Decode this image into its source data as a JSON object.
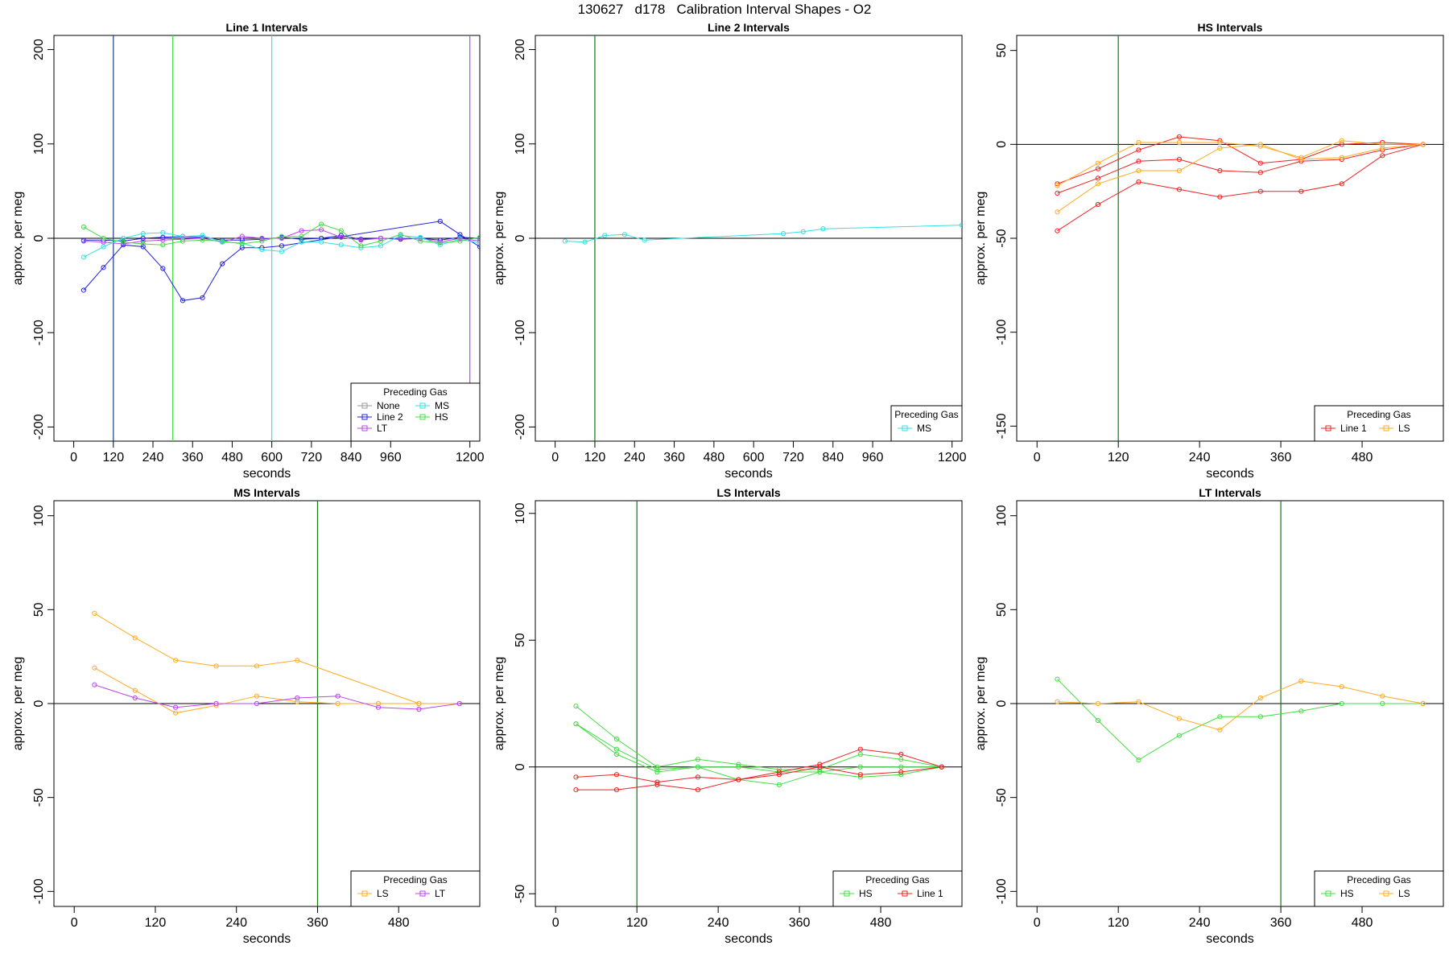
{
  "page": {
    "title": "130627   d178   Calibration Interval Shapes - O2"
  },
  "chart_data": [
    {
      "type": "line",
      "title": "Line 1 Intervals",
      "xlabel": "seconds",
      "ylabel": "approx. per meg",
      "xlim": [
        -60,
        1230
      ],
      "ylim": [
        -215,
        215
      ],
      "xticks": [
        0,
        120,
        240,
        360,
        480,
        600,
        720,
        840,
        960,
        1200
      ],
      "yticks": [
        -200,
        -100,
        0,
        100,
        200
      ],
      "hline": 0,
      "vlines": [
        {
          "x": 120,
          "color": "#1a3a8a"
        },
        {
          "x": 300,
          "color": "#44dd44"
        },
        {
          "x": 600,
          "color": "#33e0e0"
        },
        {
          "x": 1200,
          "color": "#bb44ee"
        }
      ],
      "legend": {
        "title": "Preceding Gas",
        "position": "bottom-right",
        "columns": 2,
        "entries": [
          {
            "name": "None",
            "color": "#999999"
          },
          {
            "name": "Line 2",
            "color": "#2222dd"
          },
          {
            "name": "LT",
            "color": "#bb44ee"
          },
          {
            "name": "MS",
            "color": "#33e0e0"
          },
          {
            "name": "HS",
            "color": "#44dd44"
          }
        ]
      },
      "series": [
        {
          "name": "Line 2",
          "color": "#2222dd",
          "x": [
            30,
            90,
            150,
            210,
            270,
            330,
            390,
            450,
            510,
            570,
            630,
            1110,
            1170,
            1230
          ],
          "y": [
            -55,
            -31,
            -7,
            -9,
            -32,
            -66,
            -63,
            -27,
            -10,
            -10,
            -8,
            18,
            4,
            -9
          ]
        },
        {
          "name": "Line 2",
          "color": "#2222dd",
          "x": [
            30,
            90,
            150,
            210,
            270,
            330,
            390,
            450,
            510,
            570,
            630,
            690,
            750,
            810,
            870,
            930,
            990,
            1050,
            1110,
            1170,
            1230
          ],
          "y": [
            -2,
            -2,
            -3,
            0,
            1,
            2,
            1,
            -2,
            -2,
            -1,
            1,
            -1,
            0,
            3,
            -1,
            0,
            -1,
            0,
            -2,
            1,
            0
          ]
        },
        {
          "name": "LT",
          "color": "#bb44ee",
          "x": [
            30,
            90,
            150,
            210,
            270,
            330,
            390,
            450,
            510,
            570,
            630,
            690,
            750,
            810,
            870,
            930,
            990,
            1050,
            1110,
            1170,
            1230
          ],
          "y": [
            -3,
            -4,
            -6,
            -3,
            -2,
            -1,
            0,
            -4,
            2,
            0,
            0,
            8,
            9,
            1,
            -2,
            0,
            0,
            0,
            -4,
            0,
            -3
          ]
        },
        {
          "name": "MS",
          "color": "#33e0e0",
          "x": [
            30,
            90,
            150,
            210,
            270,
            330,
            390,
            450,
            510,
            570,
            630,
            690,
            750,
            810,
            870,
            930,
            990,
            1050,
            1110,
            1170,
            1230
          ],
          "y": [
            -20,
            -9,
            0,
            5,
            6,
            2,
            3,
            -4,
            -5,
            -12,
            -14,
            -4,
            -4,
            -7,
            -10,
            -8,
            3,
            1,
            -7,
            -1,
            -5
          ]
        },
        {
          "name": "HS",
          "color": "#44dd44",
          "x": [
            30,
            90,
            150,
            210,
            270,
            330,
            390,
            450,
            510,
            570,
            630,
            690,
            750,
            810,
            870,
            930,
            990,
            1050,
            1110,
            1170,
            1230
          ],
          "y": [
            12,
            0,
            -4,
            -6,
            -7,
            -3,
            -2,
            -3,
            -6,
            -3,
            2,
            2,
            15,
            8,
            -8,
            -3,
            4,
            -3,
            -5,
            -3,
            1
          ]
        }
      ]
    },
    {
      "type": "line",
      "title": "Line 2 Intervals",
      "xlabel": "seconds",
      "ylabel": "approx. per meg",
      "xlim": [
        -60,
        1230
      ],
      "ylim": [
        -215,
        215
      ],
      "xticks": [
        0,
        120,
        240,
        360,
        480,
        600,
        720,
        840,
        960,
        1200
      ],
      "yticks": [
        -200,
        -100,
        0,
        100,
        200
      ],
      "hline": 0,
      "vlines": [
        {
          "x": 120,
          "color": "#117711"
        }
      ],
      "legend": {
        "title": "Preceding Gas",
        "position": "bottom-right",
        "columns": 1,
        "entries": [
          {
            "name": "MS",
            "color": "#33e0e0"
          }
        ]
      },
      "series": [
        {
          "name": "MS",
          "color": "#33e0e0",
          "x": [
            30,
            90,
            150,
            210,
            270,
            690,
            750,
            810,
            1230
          ],
          "y": [
            -3,
            -4,
            3,
            4,
            -2,
            5,
            7,
            10,
            14
          ]
        }
      ]
    },
    {
      "type": "line",
      "title": "HS Intervals",
      "xlabel": "seconds",
      "ylabel": "approx. per meg",
      "xlim": [
        -30,
        600
      ],
      "ylim": [
        -158,
        58
      ],
      "xticks": [
        0,
        120,
        240,
        360,
        480
      ],
      "yticks": [
        -150,
        -100,
        -50,
        0,
        50
      ],
      "hline": 0,
      "vlines": [
        {
          "x": 120,
          "color": "#117711"
        }
      ],
      "legend": {
        "title": "Preceding Gas",
        "position": "bottom-right",
        "columns": 2,
        "entries": [
          {
            "name": "Line 1",
            "color": "#ee2222"
          },
          {
            "name": "LS",
            "color": "#ffaa22"
          }
        ]
      },
      "series": [
        {
          "name": "Line 1",
          "color": "#ee2222",
          "x": [
            30,
            90,
            150,
            210,
            270,
            330,
            390,
            450,
            510,
            570
          ],
          "y": [
            -46,
            -32,
            -20,
            -24,
            -28,
            -25,
            -25,
            -21,
            -6,
            0
          ]
        },
        {
          "name": "Line 1",
          "color": "#ee2222",
          "x": [
            30,
            90,
            150,
            210,
            270,
            330,
            390,
            450,
            510,
            570
          ],
          "y": [
            -26,
            -18,
            -9,
            -8,
            -14,
            -15,
            -9,
            -8,
            -3,
            0
          ]
        },
        {
          "name": "Line 1",
          "color": "#ee2222",
          "x": [
            30,
            90,
            150,
            210,
            270,
            330,
            390,
            450,
            510,
            570
          ],
          "y": [
            -21,
            -13,
            -3,
            4,
            2,
            -10,
            -8,
            0,
            1,
            0
          ]
        },
        {
          "name": "LS",
          "color": "#ffaa22",
          "x": [
            30,
            90,
            150,
            210,
            270,
            330,
            390,
            450,
            510,
            570
          ],
          "y": [
            -36,
            -21,
            -14,
            -14,
            -2,
            0,
            -8,
            -7,
            -2,
            0
          ]
        },
        {
          "name": "LS",
          "color": "#ffaa22",
          "x": [
            30,
            90,
            150,
            210,
            270,
            330,
            390,
            450,
            510,
            570
          ],
          "y": [
            -22,
            -10,
            1,
            1,
            1,
            -1,
            -7,
            2,
            0,
            0
          ]
        }
      ]
    },
    {
      "type": "line",
      "title": "MS Intervals",
      "xlabel": "seconds",
      "ylabel": "approx. per meg",
      "xlim": [
        -30,
        600
      ],
      "ylim": [
        -108,
        108
      ],
      "xticks": [
        0,
        120,
        240,
        360,
        480
      ],
      "yticks": [
        -100,
        -50,
        0,
        50,
        100
      ],
      "hline": 0,
      "vlines": [
        {
          "x": 360,
          "color": "#117711"
        }
      ],
      "legend": {
        "title": "Preceding Gas",
        "position": "bottom-right",
        "columns": 2,
        "entries": [
          {
            "name": "LS",
            "color": "#ffaa22"
          },
          {
            "name": "LT",
            "color": "#bb44ee"
          }
        ]
      },
      "series": [
        {
          "name": "LS",
          "color": "#ffaa22",
          "x": [
            30,
            90,
            150,
            210,
            270,
            330,
            510,
            570
          ],
          "y": [
            48,
            35,
            23,
            20,
            20,
            23,
            0,
            0
          ]
        },
        {
          "name": "LS",
          "color": "#ffaa22",
          "x": [
            30,
            90,
            150,
            210,
            270,
            330,
            390,
            450,
            510,
            570
          ],
          "y": [
            19,
            7,
            -5,
            -1,
            4,
            1,
            0,
            0,
            0,
            0
          ]
        },
        {
          "name": "LT",
          "color": "#bb44ee",
          "x": [
            30,
            90,
            150,
            210,
            270,
            330,
            390,
            450,
            510,
            570
          ],
          "y": [
            10,
            3,
            -2,
            0,
            0,
            3,
            4,
            -2,
            -3,
            0
          ]
        }
      ]
    },
    {
      "type": "line",
      "title": "LS Intervals",
      "xlabel": "seconds",
      "ylabel": "approx. per meg",
      "xlim": [
        -30,
        600
      ],
      "ylim": [
        -55,
        105
      ],
      "xticks": [
        0,
        120,
        240,
        360,
        480
      ],
      "yticks": [
        -50,
        0,
        50,
        100
      ],
      "hline": 0,
      "vlines": [
        {
          "x": 120,
          "color": "#117711"
        }
      ],
      "legend": {
        "title": "Preceding Gas",
        "position": "bottom-right",
        "columns": 2,
        "entries": [
          {
            "name": "HS",
            "color": "#44dd44"
          },
          {
            "name": "Line 1",
            "color": "#ee2222"
          }
        ]
      },
      "series": [
        {
          "name": "HS",
          "color": "#44dd44",
          "x": [
            30,
            90,
            150,
            210,
            270,
            330,
            390,
            450,
            510,
            570
          ],
          "y": [
            24,
            11,
            0,
            3,
            1,
            -1,
            -1,
            5,
            3,
            0
          ]
        },
        {
          "name": "HS",
          "color": "#44dd44",
          "x": [
            30,
            90,
            150,
            210,
            270,
            330,
            390,
            450,
            510,
            570
          ],
          "y": [
            17,
            7,
            -1,
            0,
            0,
            -2,
            -2,
            -4,
            -3,
            0
          ]
        },
        {
          "name": "HS",
          "color": "#44dd44",
          "x": [
            30,
            90,
            150,
            210,
            270,
            330,
            390,
            450,
            510,
            570
          ],
          "y": [
            17,
            5,
            -2,
            0,
            -5,
            -7,
            -2,
            0,
            0,
            0
          ]
        },
        {
          "name": "Line 1",
          "color": "#ee2222",
          "x": [
            30,
            90,
            150,
            210,
            270,
            330,
            390,
            450,
            510,
            570
          ],
          "y": [
            -4,
            -3,
            -6,
            -4,
            -5,
            -2,
            1,
            7,
            5,
            0
          ]
        },
        {
          "name": "Line 1",
          "color": "#ee2222",
          "x": [
            30,
            90,
            150,
            210,
            270,
            330,
            390,
            450,
            510,
            570
          ],
          "y": [
            -9,
            -9,
            -7,
            -9,
            -5,
            -3,
            0,
            -3,
            -2,
            0
          ]
        }
      ]
    },
    {
      "type": "line",
      "title": "LT Intervals",
      "xlabel": "seconds",
      "ylabel": "approx. per meg",
      "xlim": [
        -30,
        600
      ],
      "ylim": [
        -108,
        108
      ],
      "xticks": [
        0,
        120,
        240,
        360,
        480
      ],
      "yticks": [
        -100,
        -50,
        0,
        50,
        100
      ],
      "hline": 0,
      "vlines": [
        {
          "x": 360,
          "color": "#117711"
        }
      ],
      "legend": {
        "title": "Preceding Gas",
        "position": "bottom-right",
        "columns": 2,
        "entries": [
          {
            "name": "HS",
            "color": "#44dd44"
          },
          {
            "name": "LS",
            "color": "#ffaa22"
          }
        ]
      },
      "series": [
        {
          "name": "HS",
          "color": "#44dd44",
          "x": [
            30,
            90,
            150,
            210,
            270,
            330,
            390,
            450,
            510,
            570
          ],
          "y": [
            13,
            -9,
            -30,
            -17,
            -7,
            -7,
            -4,
            0,
            0,
            0
          ]
        },
        {
          "name": "LS",
          "color": "#ffaa22",
          "x": [
            30,
            90,
            150,
            210,
            270,
            330,
            390,
            450,
            510,
            570
          ],
          "y": [
            1,
            0,
            1,
            -8,
            -14,
            3,
            12,
            9,
            4,
            0
          ]
        }
      ]
    }
  ]
}
